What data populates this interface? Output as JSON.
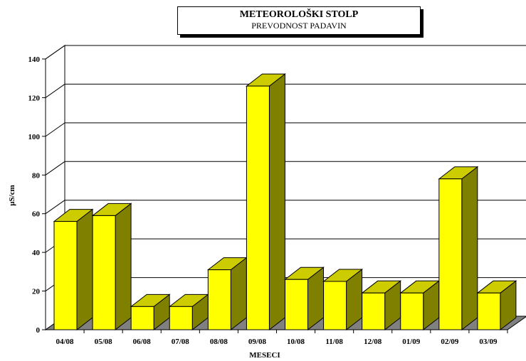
{
  "chart_data": {
    "type": "bar",
    "title": "METEOROLOŠKI STOLP",
    "subtitle": "PREVODNOST PADAVIN",
    "xlabel": "MESECI",
    "ylabel": "µS/cm",
    "categories": [
      "04/08",
      "05/08",
      "06/08",
      "07/08",
      "08/08",
      "09/08",
      "10/08",
      "11/08",
      "12/08",
      "01/09",
      "02/09",
      "03/09"
    ],
    "values": [
      56,
      59,
      12,
      12,
      31,
      126,
      26,
      25,
      19,
      19,
      78,
      19
    ],
    "ylim": [
      0,
      140
    ],
    "yticks": [
      "0",
      "20",
      "40",
      "60",
      "80",
      "100",
      "120",
      "140"
    ],
    "grid": true,
    "colors": {
      "bar_front": "#ffff00",
      "bar_top": "#cccc00",
      "bar_side": "#808000",
      "floor": "#808080",
      "wall": "#ffffff"
    }
  }
}
